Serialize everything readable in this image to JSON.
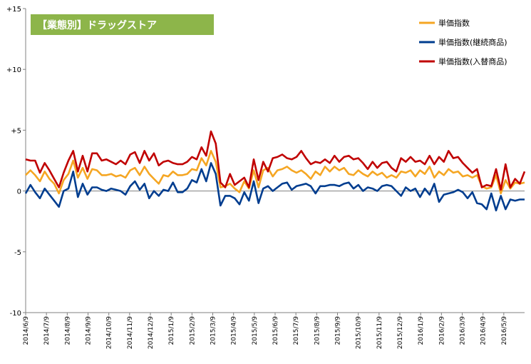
{
  "chart_data": {
    "type": "line",
    "title": "【業態別】ドラッグストア",
    "xlabel": "",
    "ylabel": "",
    "ylim": [
      -10,
      15
    ],
    "y_ticks": [
      -10,
      -5,
      0,
      5,
      10,
      15
    ],
    "y_tick_labels": [
      "-10",
      "-5",
      "0",
      "+5",
      "+10",
      "+15"
    ],
    "x_tick_labels": [
      "2014/6/9",
      "2014/7/9",
      "2014/8/9",
      "2014/9/9",
      "2014/10/9",
      "2014/11/9",
      "2014/12/9",
      "2015/1/9",
      "2015/2/9",
      "2015/3/9",
      "2015/4/9",
      "2015/5/9",
      "2015/6/9",
      "2015/7/9",
      "2015/8/9",
      "2015/9/9",
      "2015/10/9",
      "2015/11/9",
      "2015/12/9",
      "2016/1/9",
      "2016/2/9",
      "2016/3/9",
      "2016/4/9",
      "2016/5/9"
    ],
    "grid": false,
    "legend_position": "top-right",
    "series": [
      {
        "name": "単価指数",
        "color": "#F5A623",
        "values": [
          1.3,
          1.7,
          1.3,
          0.8,
          1.6,
          1.0,
          0.6,
          -0.2,
          0.9,
          1.4,
          2.5,
          1.1,
          1.9,
          1.0,
          1.8,
          1.7,
          1.3,
          1.3,
          1.4,
          1.2,
          1.3,
          1.1,
          1.7,
          1.9,
          1.3,
          2.0,
          1.4,
          1.0,
          0.6,
          1.3,
          1.2,
          1.6,
          1.3,
          1.3,
          1.4,
          1.8,
          1.7,
          2.7,
          2.1,
          3.3,
          2.4,
          0.3,
          0.4,
          0.6,
          0.2,
          -0.1,
          0.8,
          0.2,
          1.7,
          0.3,
          1.7,
          1.9,
          1.2,
          1.7,
          1.8,
          2.0,
          1.7,
          1.5,
          1.7,
          1.4,
          1.0,
          1.6,
          1.3,
          2.0,
          1.6,
          2.0,
          1.7,
          1.9,
          1.4,
          1.3,
          1.7,
          1.4,
          1.2,
          1.6,
          1.3,
          1.5,
          1.1,
          1.3,
          1.1,
          1.6,
          1.5,
          1.7,
          1.2,
          1.7,
          1.4,
          2.0,
          1.1,
          1.6,
          1.3,
          1.8,
          1.5,
          1.6,
          1.2,
          1.3,
          1.1,
          1.3,
          0.4,
          0.2,
          0.3,
          1.3,
          -0.2,
          0.9,
          0.2,
          0.7,
          0.6,
          0.7
        ]
      },
      {
        "name": "単価指数(継続商品)",
        "color": "#003D8F",
        "values": [
          -0.2,
          0.5,
          -0.1,
          -0.6,
          0.2,
          -0.3,
          -0.8,
          -1.3,
          0.0,
          0.2,
          1.6,
          -0.5,
          0.6,
          -0.3,
          0.3,
          0.3,
          0.1,
          0.0,
          0.2,
          0.1,
          0.0,
          -0.3,
          0.4,
          0.8,
          0.1,
          0.6,
          -0.6,
          0.0,
          -0.4,
          0.1,
          0.0,
          0.7,
          -0.1,
          -0.1,
          0.2,
          0.9,
          0.7,
          1.8,
          0.8,
          2.3,
          1.4,
          -1.2,
          -0.4,
          -0.4,
          -0.6,
          -1.1,
          -0.1,
          -0.8,
          0.8,
          -1.0,
          0.2,
          0.4,
          0.0,
          0.3,
          0.6,
          0.7,
          0.1,
          0.4,
          0.5,
          0.6,
          0.4,
          -0.2,
          0.4,
          0.4,
          0.5,
          0.5,
          0.4,
          0.6,
          0.7,
          0.2,
          0.5,
          0.0,
          0.3,
          0.2,
          0.0,
          0.4,
          0.5,
          0.4,
          0.0,
          -0.4,
          0.3,
          0.0,
          0.2,
          -0.5,
          0.2,
          -0.3,
          0.6,
          -0.9,
          -0.3,
          -0.2,
          -0.1,
          0.1,
          -0.1,
          -0.6,
          -0.1,
          -1.0,
          -1.1,
          -1.5,
          -0.2,
          -1.6,
          -0.4,
          -1.5,
          -0.7,
          -0.8,
          -0.7,
          -0.7
        ]
      },
      {
        "name": "単価指数(入替商品)",
        "color": "#C00000",
        "values": [
          2.6,
          2.5,
          2.5,
          1.5,
          2.3,
          1.7,
          1.0,
          0.3,
          1.5,
          2.5,
          3.3,
          1.6,
          2.9,
          1.6,
          3.1,
          3.1,
          2.5,
          2.6,
          2.4,
          2.2,
          2.5,
          2.2,
          3.0,
          3.2,
          2.3,
          3.3,
          2.5,
          3.1,
          2.1,
          2.4,
          2.5,
          2.3,
          2.2,
          2.2,
          2.4,
          2.8,
          2.6,
          3.6,
          2.9,
          4.9,
          3.9,
          0.7,
          0.3,
          1.4,
          0.5,
          0.8,
          1.1,
          0.3,
          2.6,
          0.9,
          2.4,
          1.6,
          2.7,
          2.8,
          3.0,
          2.7,
          2.6,
          2.8,
          3.3,
          2.7,
          2.2,
          2.4,
          2.3,
          2.6,
          2.3,
          2.9,
          2.4,
          2.8,
          2.9,
          2.6,
          2.7,
          2.3,
          1.8,
          2.4,
          1.9,
          2.3,
          2.4,
          1.9,
          1.6,
          2.7,
          2.4,
          2.8,
          2.4,
          2.5,
          2.2,
          2.9,
          2.2,
          2.8,
          2.4,
          3.3,
          2.7,
          2.8,
          2.3,
          1.9,
          1.5,
          1.8,
          0.3,
          0.5,
          0.4,
          1.8,
          0.1,
          2.2,
          0.3,
          1.0,
          0.6,
          1.6
        ]
      }
    ]
  }
}
